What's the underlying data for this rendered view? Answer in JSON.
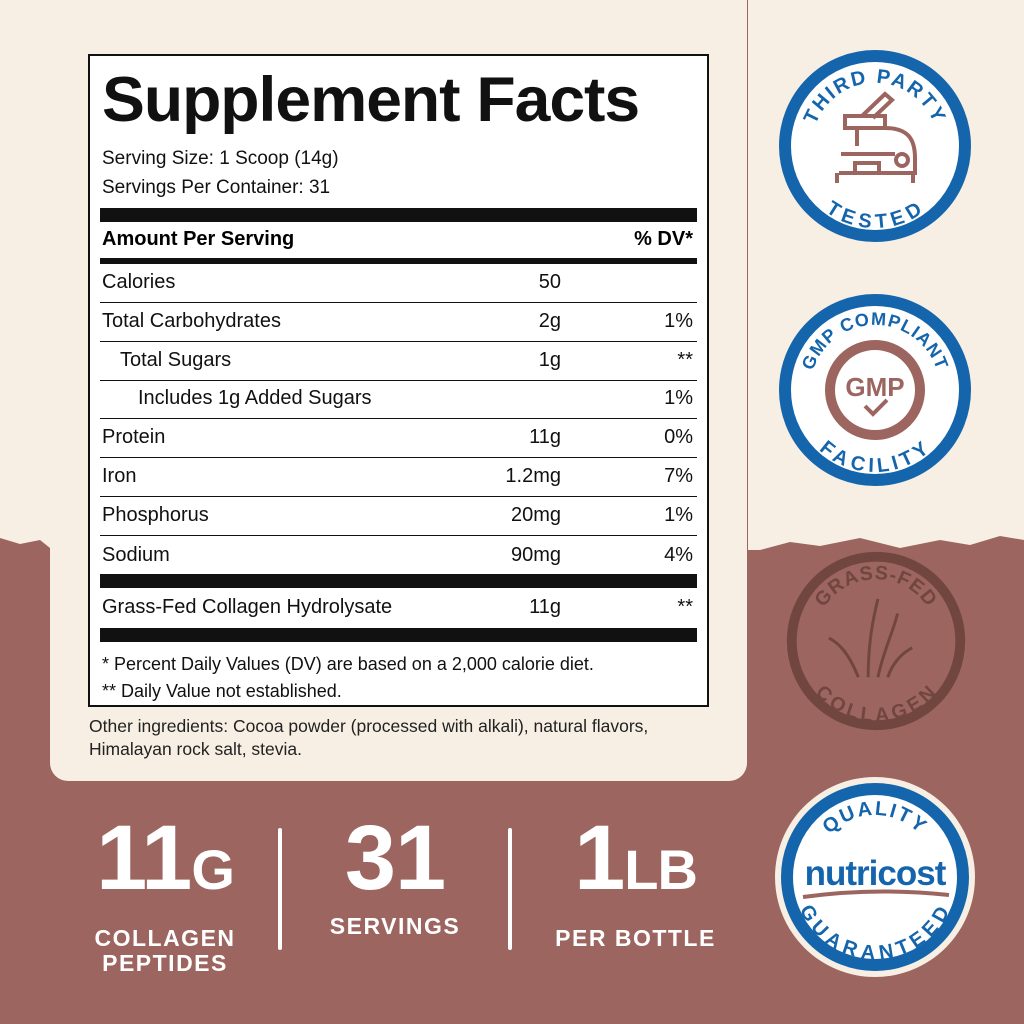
{
  "label": {
    "title": "Supplement Facts",
    "serving_size": "Serving Size: 1 Scoop (14g)",
    "servings_per_container": "Servings Per Container: 31",
    "header_left": "Amount Per Serving",
    "header_right": "% DV*",
    "rows": [
      {
        "name": "Calories",
        "amount": "50",
        "dv": ""
      },
      {
        "name": "Total Carbohydrates",
        "amount": "2g",
        "dv": "1%"
      },
      {
        "name": "Total Sugars",
        "amount": "1g",
        "dv": "**"
      },
      {
        "name": "Includes 1g Added Sugars",
        "amount": "",
        "dv": "1%"
      },
      {
        "name": "Protein",
        "amount": "11g",
        "dv": "0%"
      },
      {
        "name": "Iron",
        "amount": "1.2mg",
        "dv": "7%"
      },
      {
        "name": "Phosphorus",
        "amount": "20mg",
        "dv": "1%"
      },
      {
        "name": "Sodium",
        "amount": "90mg",
        "dv": "4%"
      }
    ],
    "special": {
      "name": "Grass-Fed Collagen Hydrolysate",
      "amount": "11g",
      "dv": "**"
    },
    "footnote1": "* Percent Daily Values (DV) are based on a 2,000 calorie diet.",
    "footnote2": "** Daily Value not established."
  },
  "other_ingredients": [
    "Other ingredients: Cocoa powder (processed with alkali), natural flavors,",
    "Himalayan rock salt, stevia."
  ],
  "stats": [
    {
      "value": "11",
      "unit": "G",
      "label1": "COLLAGEN",
      "label2": "PEPTIDES"
    },
    {
      "value": "31",
      "unit": "",
      "label1": "SERVINGS",
      "label2": ""
    },
    {
      "value": "1",
      "unit": "LB",
      "label1": "PER BOTTLE",
      "label2": ""
    }
  ],
  "badges": {
    "third_party": {
      "top": "THIRD PARTY",
      "bottom": "TESTED"
    },
    "gmp": {
      "top": "GMP COMPLIANT",
      "center": "GMP",
      "bottom": "FACILITY"
    },
    "grass_fed": {
      "top": "GRASS-FED",
      "bottom": "COLLAGEN"
    },
    "quality": {
      "top": "QUALITY",
      "brand": "nutricost",
      "bottom": "GUARANTEED"
    }
  },
  "colors": {
    "cream": "#f7efe3",
    "brown": "#9c655f",
    "blue": "#1565ad",
    "dark_brown": "#70463f"
  }
}
